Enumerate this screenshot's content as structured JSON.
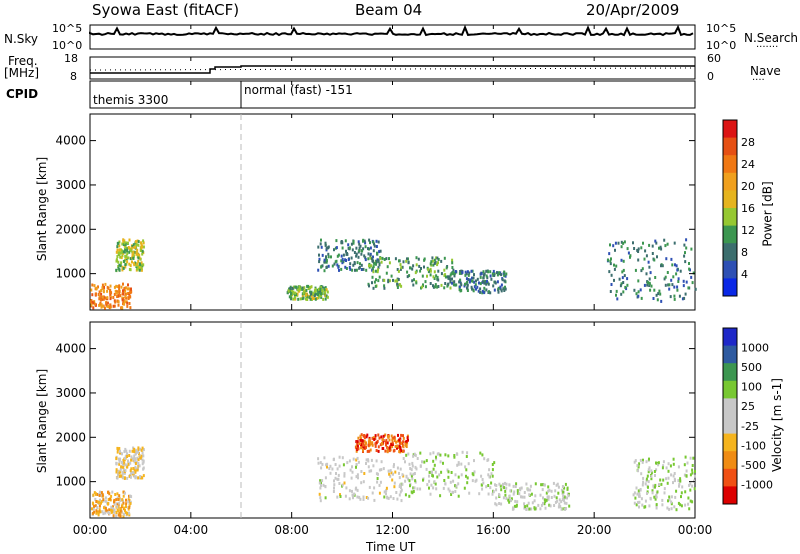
{
  "header": {
    "radar": "Syowa East (fitACF)",
    "beam": "Beam 04",
    "date": "20/Apr/2009"
  },
  "nsky_panel": {
    "left_label": "N.Sky",
    "left_ticks": [
      "10^5",
      "10^0"
    ],
    "right_ticks": [
      "10^5",
      "10^0"
    ],
    "right_label": "N.Search",
    "right_legend": "......."
  },
  "freq_panel": {
    "left_label_top": "Freq.",
    "left_label_bottom": "[MHz]",
    "left_ticks": [
      "18",
      "8"
    ],
    "right_ticks": [
      "60",
      "0"
    ],
    "right_label": "Nave",
    "right_legend": "...."
  },
  "cpid_panel": {
    "label": "CPID",
    "segments": [
      {
        "name": "themis 3300",
        "start_hour": 0,
        "end_hour": 6
      },
      {
        "name": "normal (fast) -151",
        "start_hour": 6,
        "end_hour": 24
      }
    ]
  },
  "x_axis": {
    "label": "Time UT",
    "ticks": [
      "00:00",
      "04:00",
      "08:00",
      "12:00",
      "16:00",
      "20:00",
      "00:00"
    ]
  },
  "colors": {
    "power": [
      "#0a28e6",
      "#2e50b4",
      "#3c6e6e",
      "#3c9650",
      "#96c832",
      "#e6b41e",
      "#f0a01e",
      "#f07814",
      "#e65014",
      "#dc1414"
    ],
    "velocity": [
      "#dc0000",
      "#f05014",
      "#f08c14",
      "#f5b41e",
      "#c8c8c8",
      "#c8c8c8",
      "#78c832",
      "#3c9650",
      "#2e5aa0",
      "#1e28c8"
    ]
  },
  "chart_data": [
    {
      "type": "heatmap",
      "title": "Power",
      "xlabel": "Time UT",
      "ylabel": "Slant Range [km]",
      "xlim": [
        0,
        24
      ],
      "ylim": [
        180,
        4600
      ],
      "yticks": [
        "1000",
        "2000",
        "3000",
        "4000"
      ],
      "colorbar": {
        "label": "Power [dB]",
        "ticks": [
          "28",
          "24",
          "20",
          "16",
          "12",
          "8",
          "4"
        ],
        "range": [
          0,
          30
        ]
      },
      "clusters": [
        {
          "t0": 0.0,
          "t1": 1.6,
          "r0": 250,
          "r1": 800,
          "value": 22
        },
        {
          "t0": 1.0,
          "t1": 2.1,
          "r0": 1100,
          "r1": 1800,
          "value": 14
        },
        {
          "t0": 7.8,
          "t1": 9.4,
          "r0": 450,
          "r1": 750,
          "value": 12
        },
        {
          "t0": 9.0,
          "t1": 11.5,
          "r0": 1100,
          "r1": 1800,
          "value": 8
        },
        {
          "t0": 11.0,
          "t1": 14.5,
          "r0": 700,
          "r1": 1400,
          "value": 10
        },
        {
          "t0": 14.0,
          "t1": 16.5,
          "r0": 600,
          "r1": 1100,
          "value": 8
        },
        {
          "t0": 20.5,
          "t1": 24.0,
          "r0": 400,
          "r1": 1800,
          "value": 8
        }
      ]
    },
    {
      "type": "heatmap",
      "title": "Velocity",
      "xlabel": "Time UT",
      "ylabel": "Slant Range [km]",
      "xlim": [
        0,
        24
      ],
      "ylim": [
        180,
        4600
      ],
      "yticks": [
        "1000",
        "2000",
        "3000",
        "4000"
      ],
      "colorbar": {
        "label": "Velocity [m s-1]",
        "ticks": [
          "1000",
          "500",
          "100",
          "25",
          "-25",
          "-100",
          "-500",
          "-1000"
        ],
        "range": [
          -1000,
          1000
        ]
      },
      "clusters": [
        {
          "t0": 0.0,
          "t1": 1.6,
          "r0": 250,
          "r1": 800,
          "value": -300
        },
        {
          "t0": 1.0,
          "t1": 2.1,
          "r0": 1100,
          "r1": 1800,
          "value": -150
        },
        {
          "t0": 9.0,
          "t1": 12.5,
          "r0": 600,
          "r1": 1600,
          "value": 0
        },
        {
          "t0": 10.5,
          "t1": 12.6,
          "r0": 1700,
          "r1": 2100,
          "value": -700
        },
        {
          "t0": 12.5,
          "t1": 16.0,
          "r0": 700,
          "r1": 1700,
          "value": 150
        },
        {
          "t0": 16.0,
          "t1": 19.0,
          "r0": 400,
          "r1": 1000,
          "value": 80
        },
        {
          "t0": 21.5,
          "t1": 24.0,
          "r0": 400,
          "r1": 1600,
          "value": 150
        }
      ]
    }
  ]
}
